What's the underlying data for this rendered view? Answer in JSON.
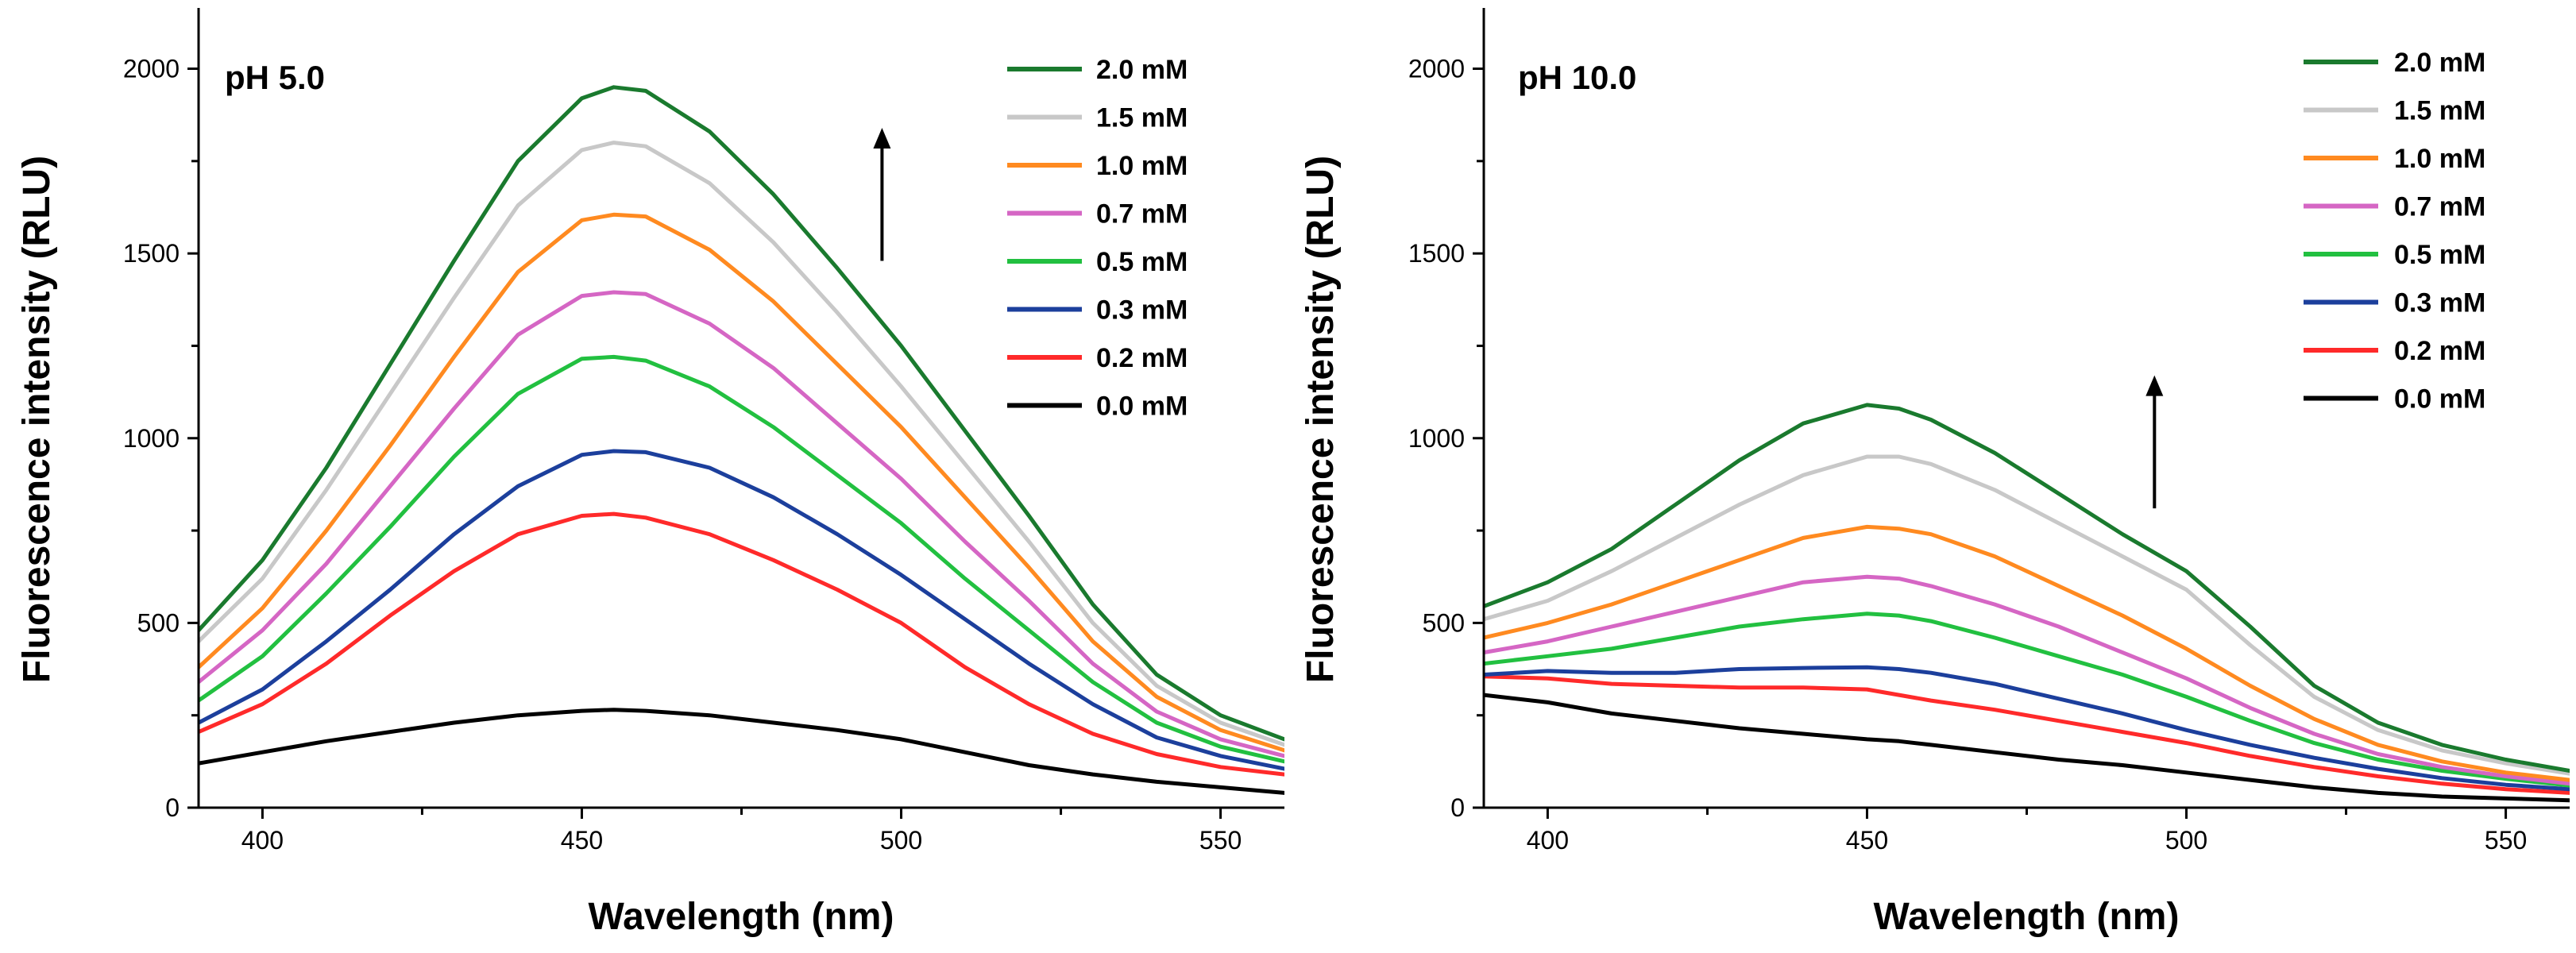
{
  "chart_data": [
    {
      "type": "line",
      "panel_label": "pH 5.0",
      "xlabel": "Wavelength (nm)",
      "ylabel": "Fluorescence intensity (RLU)",
      "xlim": [
        390,
        560
      ],
      "ylim": [
        0,
        2100
      ],
      "xticks": [
        400,
        450,
        500,
        550
      ],
      "yticks": [
        0,
        500,
        1000,
        1500,
        2000
      ],
      "legend_position": "top-right",
      "arrow": {
        "x": 497,
        "y_from": 1480,
        "y_to": 1840
      },
      "x": [
        390,
        400,
        410,
        420,
        430,
        440,
        450,
        455,
        460,
        470,
        480,
        490,
        500,
        510,
        520,
        530,
        540,
        550,
        560
      ],
      "series": [
        {
          "name": "2.0 mM",
          "color": "#1a7a2e",
          "values": [
            480,
            670,
            920,
            1200,
            1480,
            1750,
            1920,
            1950,
            1940,
            1830,
            1660,
            1460,
            1250,
            1020,
            790,
            550,
            360,
            250,
            185
          ]
        },
        {
          "name": "1.5 mM",
          "color": "#c8c8c8",
          "values": [
            450,
            620,
            860,
            1120,
            1380,
            1630,
            1780,
            1800,
            1790,
            1690,
            1530,
            1340,
            1140,
            930,
            720,
            500,
            330,
            230,
            170
          ]
        },
        {
          "name": "1.0 mM",
          "color": "#ff8a20",
          "values": [
            380,
            540,
            750,
            980,
            1220,
            1450,
            1590,
            1605,
            1600,
            1510,
            1370,
            1200,
            1030,
            840,
            650,
            450,
            300,
            210,
            155
          ]
        },
        {
          "name": "0.7 mM",
          "color": "#d566c4",
          "values": [
            340,
            480,
            660,
            870,
            1080,
            1280,
            1385,
            1395,
            1390,
            1310,
            1190,
            1040,
            890,
            720,
            560,
            390,
            260,
            185,
            140
          ]
        },
        {
          "name": "0.5 mM",
          "color": "#22c040",
          "values": [
            290,
            410,
            580,
            760,
            950,
            1120,
            1215,
            1220,
            1210,
            1140,
            1030,
            900,
            770,
            620,
            480,
            340,
            230,
            165,
            125
          ]
        },
        {
          "name": "0.3 mM",
          "color": "#1c3f9c",
          "values": [
            230,
            320,
            450,
            590,
            740,
            870,
            955,
            965,
            962,
            920,
            840,
            740,
            630,
            510,
            390,
            280,
            190,
            140,
            105
          ]
        },
        {
          "name": "0.2 mM",
          "color": "#ff2a2a",
          "values": [
            205,
            280,
            390,
            520,
            640,
            740,
            790,
            795,
            785,
            740,
            670,
            590,
            500,
            380,
            280,
            200,
            145,
            110,
            90
          ]
        },
        {
          "name": "0.0 mM",
          "color": "#000000",
          "values": [
            120,
            150,
            180,
            205,
            230,
            250,
            262,
            265,
            262,
            250,
            230,
            210,
            185,
            150,
            115,
            90,
            70,
            55,
            40
          ]
        }
      ]
    },
    {
      "type": "line",
      "panel_label": "pH 10.0",
      "xlabel": "Wavelength (nm)",
      "ylabel": "Fluorescence intensity (RLU)",
      "xlim": [
        390,
        560
      ],
      "ylim": [
        0,
        2100
      ],
      "xticks": [
        400,
        450,
        500,
        550
      ],
      "yticks": [
        0,
        500,
        1000,
        1500,
        2000
      ],
      "legend_position": "top-right",
      "arrow": {
        "x": 495,
        "y_from": 810,
        "y_to": 1170
      },
      "x": [
        390,
        400,
        410,
        420,
        430,
        440,
        450,
        455,
        460,
        470,
        480,
        490,
        500,
        510,
        520,
        530,
        540,
        550,
        560
      ],
      "series": [
        {
          "name": "2.0 mM",
          "color": "#1a7a2e",
          "values": [
            545,
            610,
            700,
            820,
            940,
            1040,
            1090,
            1080,
            1050,
            960,
            850,
            740,
            640,
            490,
            330,
            230,
            170,
            130,
            100
          ]
        },
        {
          "name": "1.5 mM",
          "color": "#c8c8c8",
          "values": [
            510,
            560,
            640,
            730,
            820,
            900,
            950,
            950,
            930,
            860,
            770,
            680,
            590,
            440,
            300,
            210,
            155,
            120,
            92
          ]
        },
        {
          "name": "1.0 mM",
          "color": "#ff8a20",
          "values": [
            460,
            500,
            550,
            610,
            670,
            730,
            760,
            755,
            740,
            680,
            600,
            520,
            430,
            330,
            240,
            170,
            125,
            95,
            75
          ]
        },
        {
          "name": "0.7 mM",
          "color": "#d566c4",
          "values": [
            420,
            450,
            490,
            530,
            570,
            610,
            625,
            620,
            600,
            550,
            490,
            420,
            350,
            270,
            200,
            145,
            110,
            85,
            65
          ]
        },
        {
          "name": "0.5 mM",
          "color": "#22c040",
          "values": [
            390,
            410,
            430,
            460,
            490,
            510,
            525,
            520,
            505,
            460,
            410,
            360,
            300,
            235,
            175,
            130,
            100,
            78,
            60
          ]
        },
        {
          "name": "0.3 mM",
          "color": "#1c3f9c",
          "values": [
            360,
            370,
            365,
            365,
            375,
            378,
            380,
            375,
            365,
            335,
            295,
            255,
            210,
            170,
            135,
            105,
            80,
            62,
            50
          ]
        },
        {
          "name": "0.2 mM",
          "color": "#ff2a2a",
          "values": [
            355,
            350,
            335,
            330,
            325,
            325,
            320,
            305,
            290,
            265,
            235,
            205,
            175,
            140,
            110,
            85,
            65,
            50,
            40
          ]
        },
        {
          "name": "0.0 mM",
          "color": "#000000",
          "values": [
            305,
            285,
            255,
            235,
            215,
            200,
            185,
            180,
            170,
            150,
            130,
            115,
            95,
            75,
            55,
            40,
            30,
            25,
            20
          ]
        }
      ]
    }
  ]
}
